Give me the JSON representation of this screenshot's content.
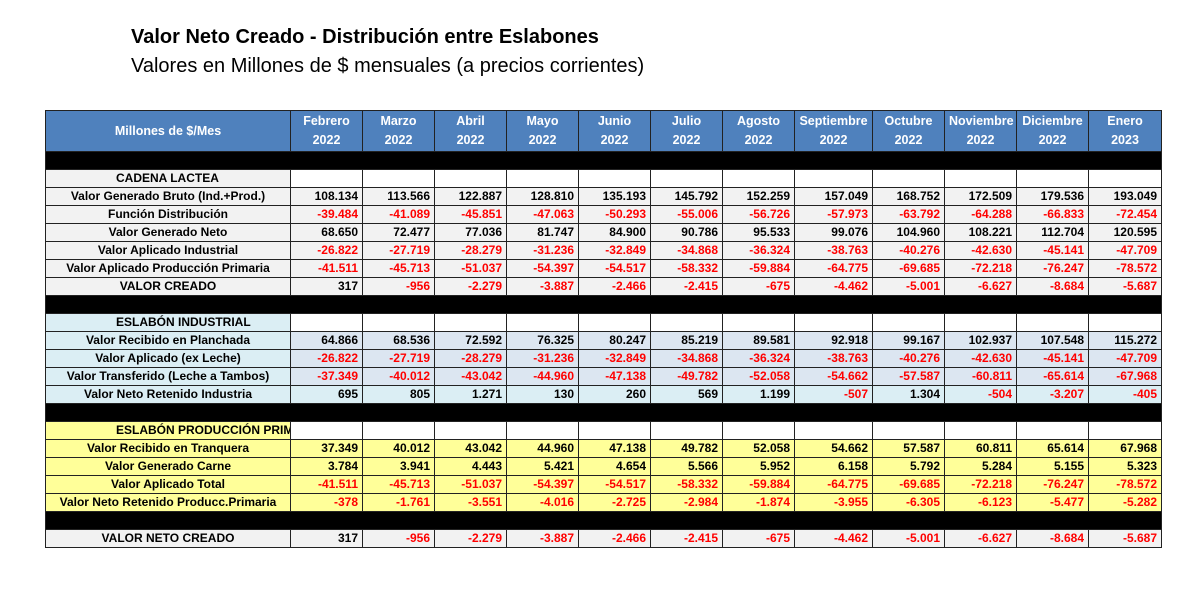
{
  "title": "Valor Neto Creado - Distribución entre Eslabones",
  "subtitle": "Valores en Millones de $ mensuales (a precios corrientes)",
  "header": {
    "label": "Millones de $/Mes",
    "months": [
      [
        "Febrero",
        "2022"
      ],
      [
        "Marzo",
        "2022"
      ],
      [
        "Abril",
        "2022"
      ],
      [
        "Mayo",
        "2022"
      ],
      [
        "Junio",
        "2022"
      ],
      [
        "Julio",
        "2022"
      ],
      [
        "Agosto",
        "2022"
      ],
      [
        "Septiembre",
        "2022"
      ],
      [
        "Octubre",
        "2022"
      ],
      [
        "Noviembre",
        "2022"
      ],
      [
        "Diciembre",
        "2022"
      ],
      [
        "Enero",
        "2023"
      ]
    ]
  },
  "colors": {
    "header": "#4f81bd",
    "negative": "#ff0000",
    "cadena": "#f2f2f2",
    "industrial": "#dce6f1",
    "primaria": "#ffff99"
  },
  "sections": [
    {
      "title": "CADENA LACTEA",
      "theme": "g",
      "rows": [
        {
          "label": "Valor Generado Bruto (Ind.+Prod.)",
          "values": [
            "108.134",
            "113.566",
            "122.887",
            "128.810",
            "135.193",
            "145.792",
            "152.259",
            "157.049",
            "168.752",
            "172.509",
            "179.536",
            "193.049"
          ]
        },
        {
          "label": "Función Distribución",
          "values": [
            "-39.484",
            "-41.089",
            "-45.851",
            "-47.063",
            "-50.293",
            "-55.006",
            "-56.726",
            "-57.973",
            "-63.792",
            "-64.288",
            "-66.833",
            "-72.454"
          ]
        },
        {
          "label": "Valor Generado Neto",
          "values": [
            "68.650",
            "72.477",
            "77.036",
            "81.747",
            "84.900",
            "90.786",
            "95.533",
            "99.076",
            "104.960",
            "108.221",
            "112.704",
            "120.595"
          ]
        },
        {
          "label": "Valor Aplicado Industrial",
          "values": [
            "-26.822",
            "-27.719",
            "-28.279",
            "-31.236",
            "-32.849",
            "-34.868",
            "-36.324",
            "-38.763",
            "-40.276",
            "-42.630",
            "-45.141",
            "-47.709"
          ]
        },
        {
          "label": "Valor Aplicado Producción Primaria",
          "values": [
            "-41.511",
            "-45.713",
            "-51.037",
            "-54.397",
            "-54.517",
            "-58.332",
            "-59.884",
            "-64.775",
            "-69.685",
            "-72.218",
            "-76.247",
            "-78.572"
          ]
        }
      ],
      "total": {
        "label": "VALOR CREADO",
        "values": [
          "317",
          "-956",
          "-2.279",
          "-3.887",
          "-2.466",
          "-2.415",
          "-675",
          "-4.462",
          "-5.001",
          "-6.627",
          "-8.684",
          "-5.687"
        ]
      }
    },
    {
      "title": "ESLABÓN INDUSTRIAL",
      "theme": "b",
      "rows": [
        {
          "label": "Valor Recibido en Planchada",
          "values": [
            "64.866",
            "68.536",
            "72.592",
            "76.325",
            "80.247",
            "85.219",
            "89.581",
            "92.918",
            "99.167",
            "102.937",
            "107.548",
            "115.272"
          ]
        },
        {
          "label": "Valor Aplicado (ex Leche)",
          "values": [
            "-26.822",
            "-27.719",
            "-28.279",
            "-31.236",
            "-32.849",
            "-34.868",
            "-36.324",
            "-38.763",
            "-40.276",
            "-42.630",
            "-45.141",
            "-47.709"
          ]
        },
        {
          "label": "Valor Transferido (Leche a Tambos)",
          "values": [
            "-37.349",
            "-40.012",
            "-43.042",
            "-44.960",
            "-47.138",
            "-49.782",
            "-52.058",
            "-54.662",
            "-57.587",
            "-60.811",
            "-65.614",
            "-67.968"
          ]
        }
      ],
      "total": {
        "label": "Valor Neto Retenido Industria",
        "values": [
          "695",
          "805",
          "1.271",
          "130",
          "260",
          "569",
          "1.199",
          "-507",
          "1.304",
          "-504",
          "-3.207",
          "-405"
        ]
      }
    },
    {
      "title": "ESLABÓN PRODUCCIÓN PRIMARIA",
      "theme": "y",
      "rows": [
        {
          "label": "Valor Recibido en Tranquera",
          "values": [
            "37.349",
            "40.012",
            "43.042",
            "44.960",
            "47.138",
            "49.782",
            "52.058",
            "54.662",
            "57.587",
            "60.811",
            "65.614",
            "67.968"
          ]
        },
        {
          "label": "Valor Generado Carne",
          "values": [
            "3.784",
            "3.941",
            "4.443",
            "5.421",
            "4.654",
            "5.566",
            "5.952",
            "6.158",
            "5.792",
            "5.284",
            "5.155",
            "5.323"
          ]
        },
        {
          "label": "Valor Aplicado Total",
          "values": [
            "-41.511",
            "-45.713",
            "-51.037",
            "-54.397",
            "-54.517",
            "-58.332",
            "-59.884",
            "-64.775",
            "-69.685",
            "-72.218",
            "-76.247",
            "-78.572"
          ]
        }
      ],
      "total": {
        "label": "Valor Neto Retenido Producc.Primaria",
        "values": [
          "-378",
          "-1.761",
          "-3.551",
          "-4.016",
          "-2.725",
          "-2.984",
          "-1.874",
          "-3.955",
          "-6.305",
          "-6.123",
          "-5.477",
          "-5.282"
        ]
      }
    }
  ],
  "grand_total": {
    "label": "VALOR NETO CREADO",
    "values": [
      "317",
      "-956",
      "-2.279",
      "-3.887",
      "-2.466",
      "-2.415",
      "-675",
      "-4.462",
      "-5.001",
      "-6.627",
      "-8.684",
      "-5.687"
    ]
  }
}
